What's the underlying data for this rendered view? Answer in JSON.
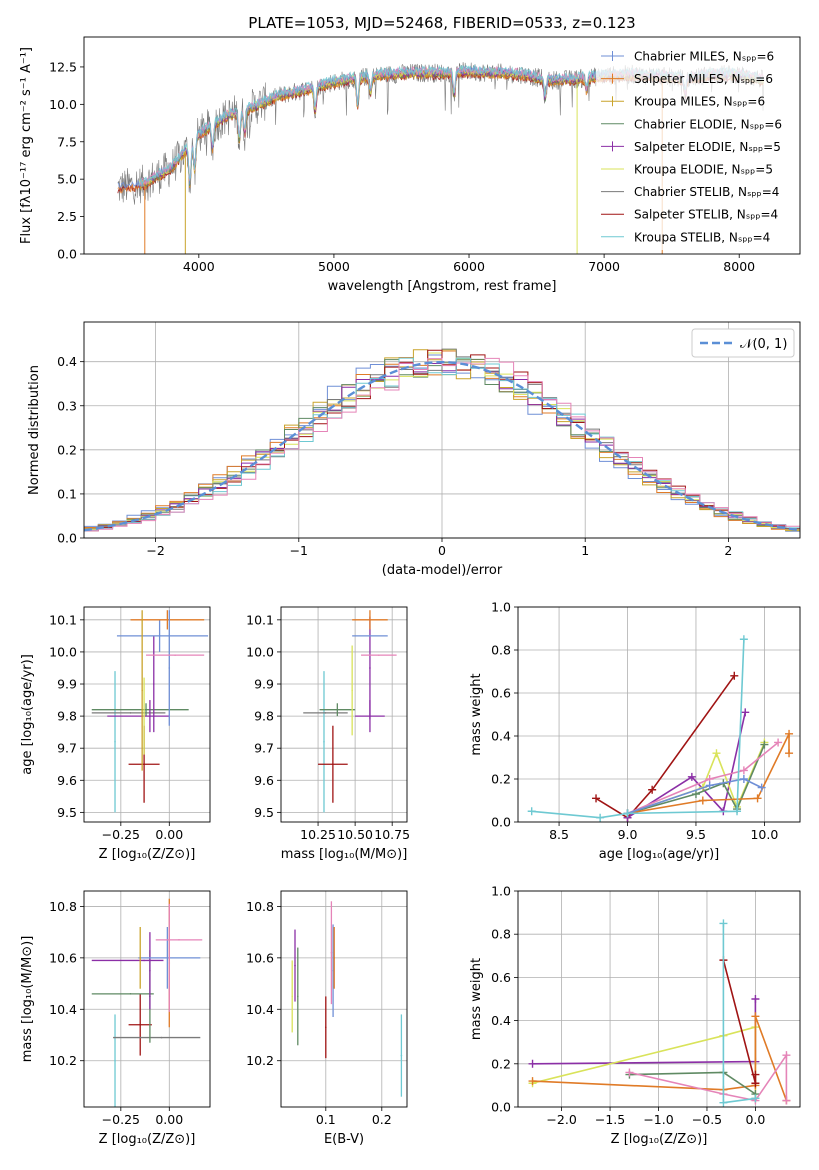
{
  "colors": {
    "chabrier_miles": "#6f8fd6",
    "salpeter_miles": "#e07b27",
    "kroupa_miles": "#c9a32b",
    "chabrier_elodie": "#5f8a63",
    "salpeter_elodie": "#8b2fa6",
    "kroupa_elodie": "#d9e35a",
    "chabrier_stelib": "#7a7a7a",
    "salpeter_stelib": "#a01414",
    "kroupa_stelib": "#6ec9d2",
    "pink": "#e584b8",
    "grid": "#b0b0b0",
    "normal_curve": "#5b8fd6"
  },
  "chart_data": [
    {
      "type": "line",
      "title": "PLATE=1053, MJD=52468, FIBERID=0533, z=0.123",
      "xlabel": "wavelength [Angstrom, rest frame]",
      "ylabel": "Flux [fλ10⁻¹⁷ erg cm⁻² s⁻¹ A⁻¹]",
      "xlim": [
        3150,
        8450
      ],
      "ylim": [
        0,
        14.5
      ],
      "xticks": [
        4000,
        5000,
        6000,
        7000,
        8000
      ],
      "yticks": [
        0.0,
        2.5,
        5.0,
        7.5,
        10.0,
        12.5
      ],
      "grid": false,
      "legend_position": "right",
      "series": [
        {
          "name": "Chabrier MILES, Nₛₚₚ=6",
          "color_key": "chabrier_miles"
        },
        {
          "name": "Salpeter MILES, Nₛₚₚ=6",
          "color_key": "salpeter_miles"
        },
        {
          "name": "Kroupa MILES, Nₛₚₚ=6",
          "color_key": "kroupa_miles"
        },
        {
          "name": "Chabrier ELODIE, Nₛₚₚ=6",
          "color_key": "chabrier_elodie"
        },
        {
          "name": "Salpeter ELODIE, Nₛₚₚ=5",
          "color_key": "salpeter_elodie"
        },
        {
          "name": "Kroupa ELODIE, Nₛₚₚ=5",
          "color_key": "kroupa_elodie"
        },
        {
          "name": "Chabrier STELIB, Nₛₚₚ=4",
          "color_key": "chabrier_stelib"
        },
        {
          "name": "Salpeter STELIB, Nₛₚₚ=4",
          "color_key": "salpeter_stelib"
        },
        {
          "name": "Kroupa STELIB, Nₛₚₚ=4",
          "color_key": "kroupa_stelib"
        }
      ],
      "continuum": {
        "x": [
          3400,
          3600,
          3800,
          4000,
          4200,
          4400,
          4600,
          4800,
          5000,
          5200,
          5400,
          5600,
          5800,
          6000,
          6200,
          6400,
          6600,
          6800,
          7000,
          7200,
          7400,
          7600,
          7800,
          8000,
          8200
        ],
        "y": [
          4.4,
          4.7,
          5.8,
          8.0,
          9.2,
          9.8,
          10.6,
          11.0,
          11.5,
          11.8,
          12.0,
          12.1,
          12.1,
          12.2,
          12.1,
          12.0,
          11.6,
          11.7,
          11.9,
          12.0,
          11.9,
          11.7,
          12.0,
          12.0,
          11.6
        ]
      }
    },
    {
      "type": "histogram",
      "xlabel": "(data-model)/error",
      "ylabel": "Normed distribution",
      "xlim": [
        -2.5,
        2.5
      ],
      "ylim": [
        0,
        0.49
      ],
      "xticks": [
        -2,
        -1,
        0,
        1,
        2
      ],
      "yticks": [
        0.0,
        0.1,
        0.2,
        0.3,
        0.4
      ],
      "grid": true,
      "legend": "𝒩(0, 1)",
      "legend_position": "top-right",
      "bin_width": 0.1,
      "normal_curve": {
        "mean": 0,
        "sigma": 1
      }
    },
    {
      "type": "scatter",
      "xlabel": "Z [log₁₀(Z/Z⊙)]",
      "ylabel": "age  [log₁₀(age/yr)]",
      "xlim": [
        -0.44,
        0.21
      ],
      "ylim": [
        9.47,
        10.14
      ],
      "xticks": [
        -0.25,
        0.0
      ],
      "yticks": [
        9.5,
        9.6,
        9.7,
        9.8,
        9.9,
        10.0,
        10.1
      ],
      "grid": true,
      "points": [
        {
          "x": -0.28,
          "y": 9.72,
          "xerr": [
            0.0,
            0.0
          ],
          "yerr": [
            0.22,
            0.22
          ],
          "c": "kroupa_stelib"
        },
        {
          "x": -0.13,
          "y": 9.65,
          "xerr": [
            0.08,
            0.08
          ],
          "yerr": [
            0.12,
            0.12
          ],
          "c": "salpeter_stelib"
        },
        {
          "x": -0.2,
          "y": 9.81,
          "xerr": [
            0.2,
            0.18
          ],
          "yerr": [
            0.0,
            0.0
          ],
          "c": "chabrier_stelib"
        },
        {
          "x": -0.12,
          "y": 9.82,
          "xerr": [
            0.28,
            0.22
          ],
          "yerr": [
            0.02,
            0.02
          ],
          "c": "chabrier_elodie"
        },
        {
          "x": -0.1,
          "y": 9.8,
          "xerr": [
            0.22,
            0.1
          ],
          "yerr": [
            0.05,
            0.05
          ],
          "c": "salpeter_elodie"
        },
        {
          "x": -0.08,
          "y": 9.9,
          "xerr": [
            0.0,
            0.0
          ],
          "yerr": [
            0.15,
            0.15
          ],
          "c": "salpeter_elodie"
        },
        {
          "x": -0.05,
          "y": 10.05,
          "xerr": [
            0.22,
            0.25
          ],
          "yerr": [
            0.05,
            0.05
          ],
          "c": "chabrier_miles"
        },
        {
          "x": -0.01,
          "y": 10.1,
          "xerr": [
            0.19,
            0.19
          ],
          "yerr": [
            0.03,
            0.03
          ],
          "c": "salpeter_miles"
        },
        {
          "x": 0.0,
          "y": 9.95,
          "xerr": [
            0.0,
            0.0
          ],
          "yerr": [
            0.18,
            0.18
          ],
          "c": "chabrier_miles"
        },
        {
          "x": 0.03,
          "y": 9.99,
          "xerr": [
            0.15,
            0.15
          ],
          "yerr": [
            0.0,
            0.0
          ],
          "c": "pink"
        },
        {
          "x": -0.14,
          "y": 9.88,
          "xerr": [
            0.0,
            0.0
          ],
          "yerr": [
            0.25,
            0.25
          ],
          "c": "kroupa_miles"
        },
        {
          "x": -0.13,
          "y": 9.8,
          "xerr": [
            0.0,
            0.0
          ],
          "yerr": [
            0.12,
            0.12
          ],
          "c": "kroupa_elodie"
        }
      ]
    },
    {
      "type": "scatter",
      "xlabel": "mass [log₁₀(M/M⊙)]",
      "xlim": [
        10.0,
        10.85
      ],
      "ylim": [
        9.47,
        10.14
      ],
      "xticks": [
        10.25,
        10.5,
        10.75
      ],
      "yticks": [
        9.5,
        9.6,
        9.7,
        9.8,
        9.9,
        10.0,
        10.1
      ],
      "grid": true,
      "points": [
        {
          "x": 10.29,
          "y": 9.72,
          "xerr": [
            0.0,
            0.0
          ],
          "yerr": [
            0.22,
            0.22
          ],
          "c": "kroupa_stelib"
        },
        {
          "x": 10.35,
          "y": 9.65,
          "xerr": [
            0.1,
            0.1
          ],
          "yerr": [
            0.12,
            0.12
          ],
          "c": "salpeter_stelib"
        },
        {
          "x": 10.3,
          "y": 9.81,
          "xerr": [
            0.15,
            0.15
          ],
          "yerr": [
            0.0,
            0.0
          ],
          "c": "chabrier_stelib"
        },
        {
          "x": 10.38,
          "y": 9.82,
          "xerr": [
            0.12,
            0.12
          ],
          "yerr": [
            0.02,
            0.02
          ],
          "c": "chabrier_elodie"
        },
        {
          "x": 10.6,
          "y": 9.8,
          "xerr": [
            0.1,
            0.1
          ],
          "yerr": [
            0.05,
            0.05
          ],
          "c": "salpeter_elodie"
        },
        {
          "x": 10.6,
          "y": 9.95,
          "xerr": [
            0.0,
            0.0
          ],
          "yerr": [
            0.16,
            0.16
          ],
          "c": "salpeter_elodie"
        },
        {
          "x": 10.6,
          "y": 10.05,
          "xerr": [
            0.12,
            0.12
          ],
          "yerr": [
            0.0,
            0.0
          ],
          "c": "chabrier_miles"
        },
        {
          "x": 10.6,
          "y": 10.1,
          "xerr": [
            0.12,
            0.12
          ],
          "yerr": [
            0.03,
            0.03
          ],
          "c": "salpeter_miles"
        },
        {
          "x": 10.66,
          "y": 9.99,
          "xerr": [
            0.12,
            0.12
          ],
          "yerr": [
            0.0,
            0.0
          ],
          "c": "pink"
        },
        {
          "x": 10.48,
          "y": 9.88,
          "xerr": [
            0.0,
            0.0
          ],
          "yerr": [
            0.14,
            0.14
          ],
          "c": "kroupa_elodie"
        }
      ]
    },
    {
      "type": "line",
      "xlabel": "age  [log₁₀(age/yr)]",
      "ylabel": "mass weight",
      "xlim": [
        8.2,
        10.26
      ],
      "ylim": [
        0,
        1.0
      ],
      "xticks": [
        8.5,
        9.0,
        9.5,
        10.0
      ],
      "yticks": [
        0.0,
        0.2,
        0.4,
        0.6,
        0.8,
        1.0
      ],
      "grid": true,
      "series": [
        {
          "c": "salpeter_stelib",
          "x": [
            8.77,
            9.0,
            9.18,
            9.78
          ],
          "y": [
            0.11,
            0.02,
            0.15,
            0.68
          ]
        },
        {
          "c": "salpeter_elodie",
          "x": [
            9.0,
            9.47,
            9.7,
            9.86
          ],
          "y": [
            0.02,
            0.21,
            0.05,
            0.51
          ]
        },
        {
          "c": "kroupa_elodie",
          "x": [
            9.0,
            9.55,
            9.65,
            9.8,
            10.0
          ],
          "y": [
            0.04,
            0.16,
            0.32,
            0.07,
            0.37
          ]
        },
        {
          "c": "chabrier_elodie",
          "x": [
            9.0,
            9.5,
            9.7,
            9.8,
            10.0
          ],
          "y": [
            0.04,
            0.13,
            0.18,
            0.06,
            0.36
          ]
        },
        {
          "c": "salpeter_miles",
          "x": [
            9.0,
            9.55,
            9.95,
            10.18,
            10.18
          ],
          "y": [
            0.04,
            0.1,
            0.11,
            0.41,
            0.32
          ]
        },
        {
          "c": "pink",
          "x": [
            9.0,
            9.6,
            9.85,
            10.1
          ],
          "y": [
            0.04,
            0.2,
            0.24,
            0.37
          ]
        },
        {
          "c": "chabrier_miles",
          "x": [
            9.0,
            9.6,
            9.85,
            9.98
          ],
          "y": [
            0.04,
            0.17,
            0.2,
            0.16
          ]
        },
        {
          "c": "kroupa_stelib",
          "x": [
            8.3,
            8.8,
            9.0,
            9.8,
            9.85
          ],
          "y": [
            0.05,
            0.02,
            0.04,
            0.05,
            0.85
          ]
        }
      ]
    },
    {
      "type": "scatter",
      "xlabel": "Z [log₁₀(Z/Z⊙)]",
      "ylabel": "mass [log₁₀(M/M⊙)]",
      "xlim": [
        -0.44,
        0.21
      ],
      "ylim": [
        10.02,
        10.86
      ],
      "xticks": [
        -0.25,
        0.0
      ],
      "yticks": [
        10.2,
        10.4,
        10.6,
        10.8
      ],
      "grid": true,
      "points": [
        {
          "x": -0.28,
          "y": 10.2,
          "xerr": [
            0.0,
            0.0
          ],
          "yerr": [
            0.18,
            0.18
          ],
          "c": "kroupa_stelib"
        },
        {
          "x": -0.15,
          "y": 10.34,
          "xerr": [
            0.06,
            0.06
          ],
          "yerr": [
            0.12,
            0.12
          ],
          "c": "salpeter_stelib"
        },
        {
          "x": -0.04,
          "y": 10.29,
          "xerr": [
            0.25,
            0.2
          ],
          "yerr": [
            0.0,
            0.0
          ],
          "c": "chabrier_stelib"
        },
        {
          "x": -0.2,
          "y": 10.46,
          "xerr": [
            0.2,
            0.12
          ],
          "yerr": [
            0.0,
            0.0
          ],
          "c": "chabrier_elodie"
        },
        {
          "x": -0.1,
          "y": 10.45,
          "xerr": [
            0.0,
            0.0
          ],
          "yerr": [
            0.18,
            0.18
          ],
          "c": "chabrier_elodie"
        },
        {
          "x": -0.13,
          "y": 10.59,
          "xerr": [
            0.27,
            0.1
          ],
          "yerr": [
            0.0,
            0.0
          ],
          "c": "salpeter_elodie"
        },
        {
          "x": -0.1,
          "y": 10.55,
          "xerr": [
            0.0,
            0.0
          ],
          "yerr": [
            0.15,
            0.15
          ],
          "c": "salpeter_elodie"
        },
        {
          "x": -0.01,
          "y": 10.6,
          "xerr": [
            0.0,
            0.0
          ],
          "yerr": [
            0.12,
            0.12
          ],
          "c": "chabrier_miles"
        },
        {
          "x": 0.0,
          "y": 10.6,
          "xerr": [
            0.16,
            0.16
          ],
          "yerr": [
            0.0,
            0.0
          ],
          "c": "chabrier_miles"
        },
        {
          "x": -0.15,
          "y": 10.6,
          "xerr": [
            0.0,
            0.0
          ],
          "yerr": [
            0.12,
            0.12
          ],
          "c": "kroupa_miles"
        },
        {
          "x": 0.0,
          "y": 10.58,
          "xerr": [
            0.0,
            0.0
          ],
          "yerr": [
            0.25,
            0.25
          ],
          "c": "salpeter_miles"
        },
        {
          "x": 0.05,
          "y": 10.67,
          "xerr": [
            0.12,
            0.12
          ],
          "yerr": [
            0.0,
            0.0
          ],
          "c": "pink"
        },
        {
          "x": 0.0,
          "y": 10.6,
          "xerr": [
            0.0,
            0.0
          ],
          "yerr": [
            0.21,
            0.21
          ],
          "c": "pink"
        }
      ]
    },
    {
      "type": "scatter",
      "xlabel": "E(B-V)",
      "xlim": [
        0.02,
        0.245
      ],
      "ylim": [
        10.02,
        10.86
      ],
      "xticks": [
        0.1,
        0.2
      ],
      "yticks": [
        10.2,
        10.4,
        10.6,
        10.8
      ],
      "grid": true,
      "points": [
        {
          "x": 0.04,
          "y": 10.45,
          "yerr": [
            0.14,
            0.14
          ],
          "c": "kroupa_elodie"
        },
        {
          "x": 0.045,
          "y": 10.57,
          "yerr": [
            0.14,
            0.14
          ],
          "c": "salpeter_elodie"
        },
        {
          "x": 0.05,
          "y": 10.45,
          "yerr": [
            0.19,
            0.19
          ],
          "c": "chabrier_elodie"
        },
        {
          "x": 0.1,
          "y": 10.33,
          "yerr": [
            0.12,
            0.12
          ],
          "c": "salpeter_stelib"
        },
        {
          "x": 0.11,
          "y": 10.62,
          "yerr": [
            0.2,
            0.2
          ],
          "c": "pink"
        },
        {
          "x": 0.113,
          "y": 10.55,
          "yerr": [
            0.18,
            0.18
          ],
          "c": "chabrier_miles"
        },
        {
          "x": 0.115,
          "y": 10.6,
          "yerr": [
            0.12,
            0.12
          ],
          "c": "salpeter_miles"
        },
        {
          "x": 0.235,
          "y": 10.22,
          "yerr": [
            0.16,
            0.16
          ],
          "c": "kroupa_stelib"
        }
      ]
    },
    {
      "type": "line",
      "xlabel": "Z [log₁₀(Z/Z⊙)]",
      "ylabel": "mass weight",
      "xlim": [
        -2.45,
        0.46
      ],
      "ylim": [
        0,
        1.0
      ],
      "xticks": [
        -2.0,
        -1.5,
        -1.0,
        -0.5,
        0.0
      ],
      "yticks": [
        0.0,
        0.2,
        0.4,
        0.6,
        0.8,
        1.0
      ],
      "grid": true,
      "series": [
        {
          "c": "salpeter_elodie",
          "x": [
            -2.3,
            0.0,
            0.0
          ],
          "y": [
            0.2,
            0.21,
            0.5
          ]
        },
        {
          "c": "kroupa_elodie",
          "x": [
            -2.3,
            -0.33,
            0.0,
            0.0
          ],
          "y": [
            0.11,
            0.33,
            0.37,
            0.04
          ]
        },
        {
          "c": "salpeter_miles",
          "x": [
            -2.3,
            -0.33,
            0.0,
            0.0,
            0.32
          ],
          "y": [
            0.12,
            0.08,
            0.1,
            0.42,
            0.03
          ]
        },
        {
          "c": "chabrier_elodie",
          "x": [
            -1.3,
            -0.33,
            0.0
          ],
          "y": [
            0.15,
            0.16,
            0.06
          ]
        },
        {
          "c": "pink",
          "x": [
            -1.3,
            -0.33,
            0.0,
            0.32,
            0.32
          ],
          "y": [
            0.16,
            0.06,
            0.03,
            0.24,
            0.03
          ]
        },
        {
          "c": "salpeter_stelib",
          "x": [
            -0.33,
            0.0,
            0.0
          ],
          "y": [
            0.68,
            0.11,
            0.15
          ]
        },
        {
          "c": "kroupa_stelib",
          "x": [
            -0.33,
            -0.33,
            0.0
          ],
          "y": [
            0.85,
            0.02,
            0.04
          ]
        }
      ]
    }
  ]
}
